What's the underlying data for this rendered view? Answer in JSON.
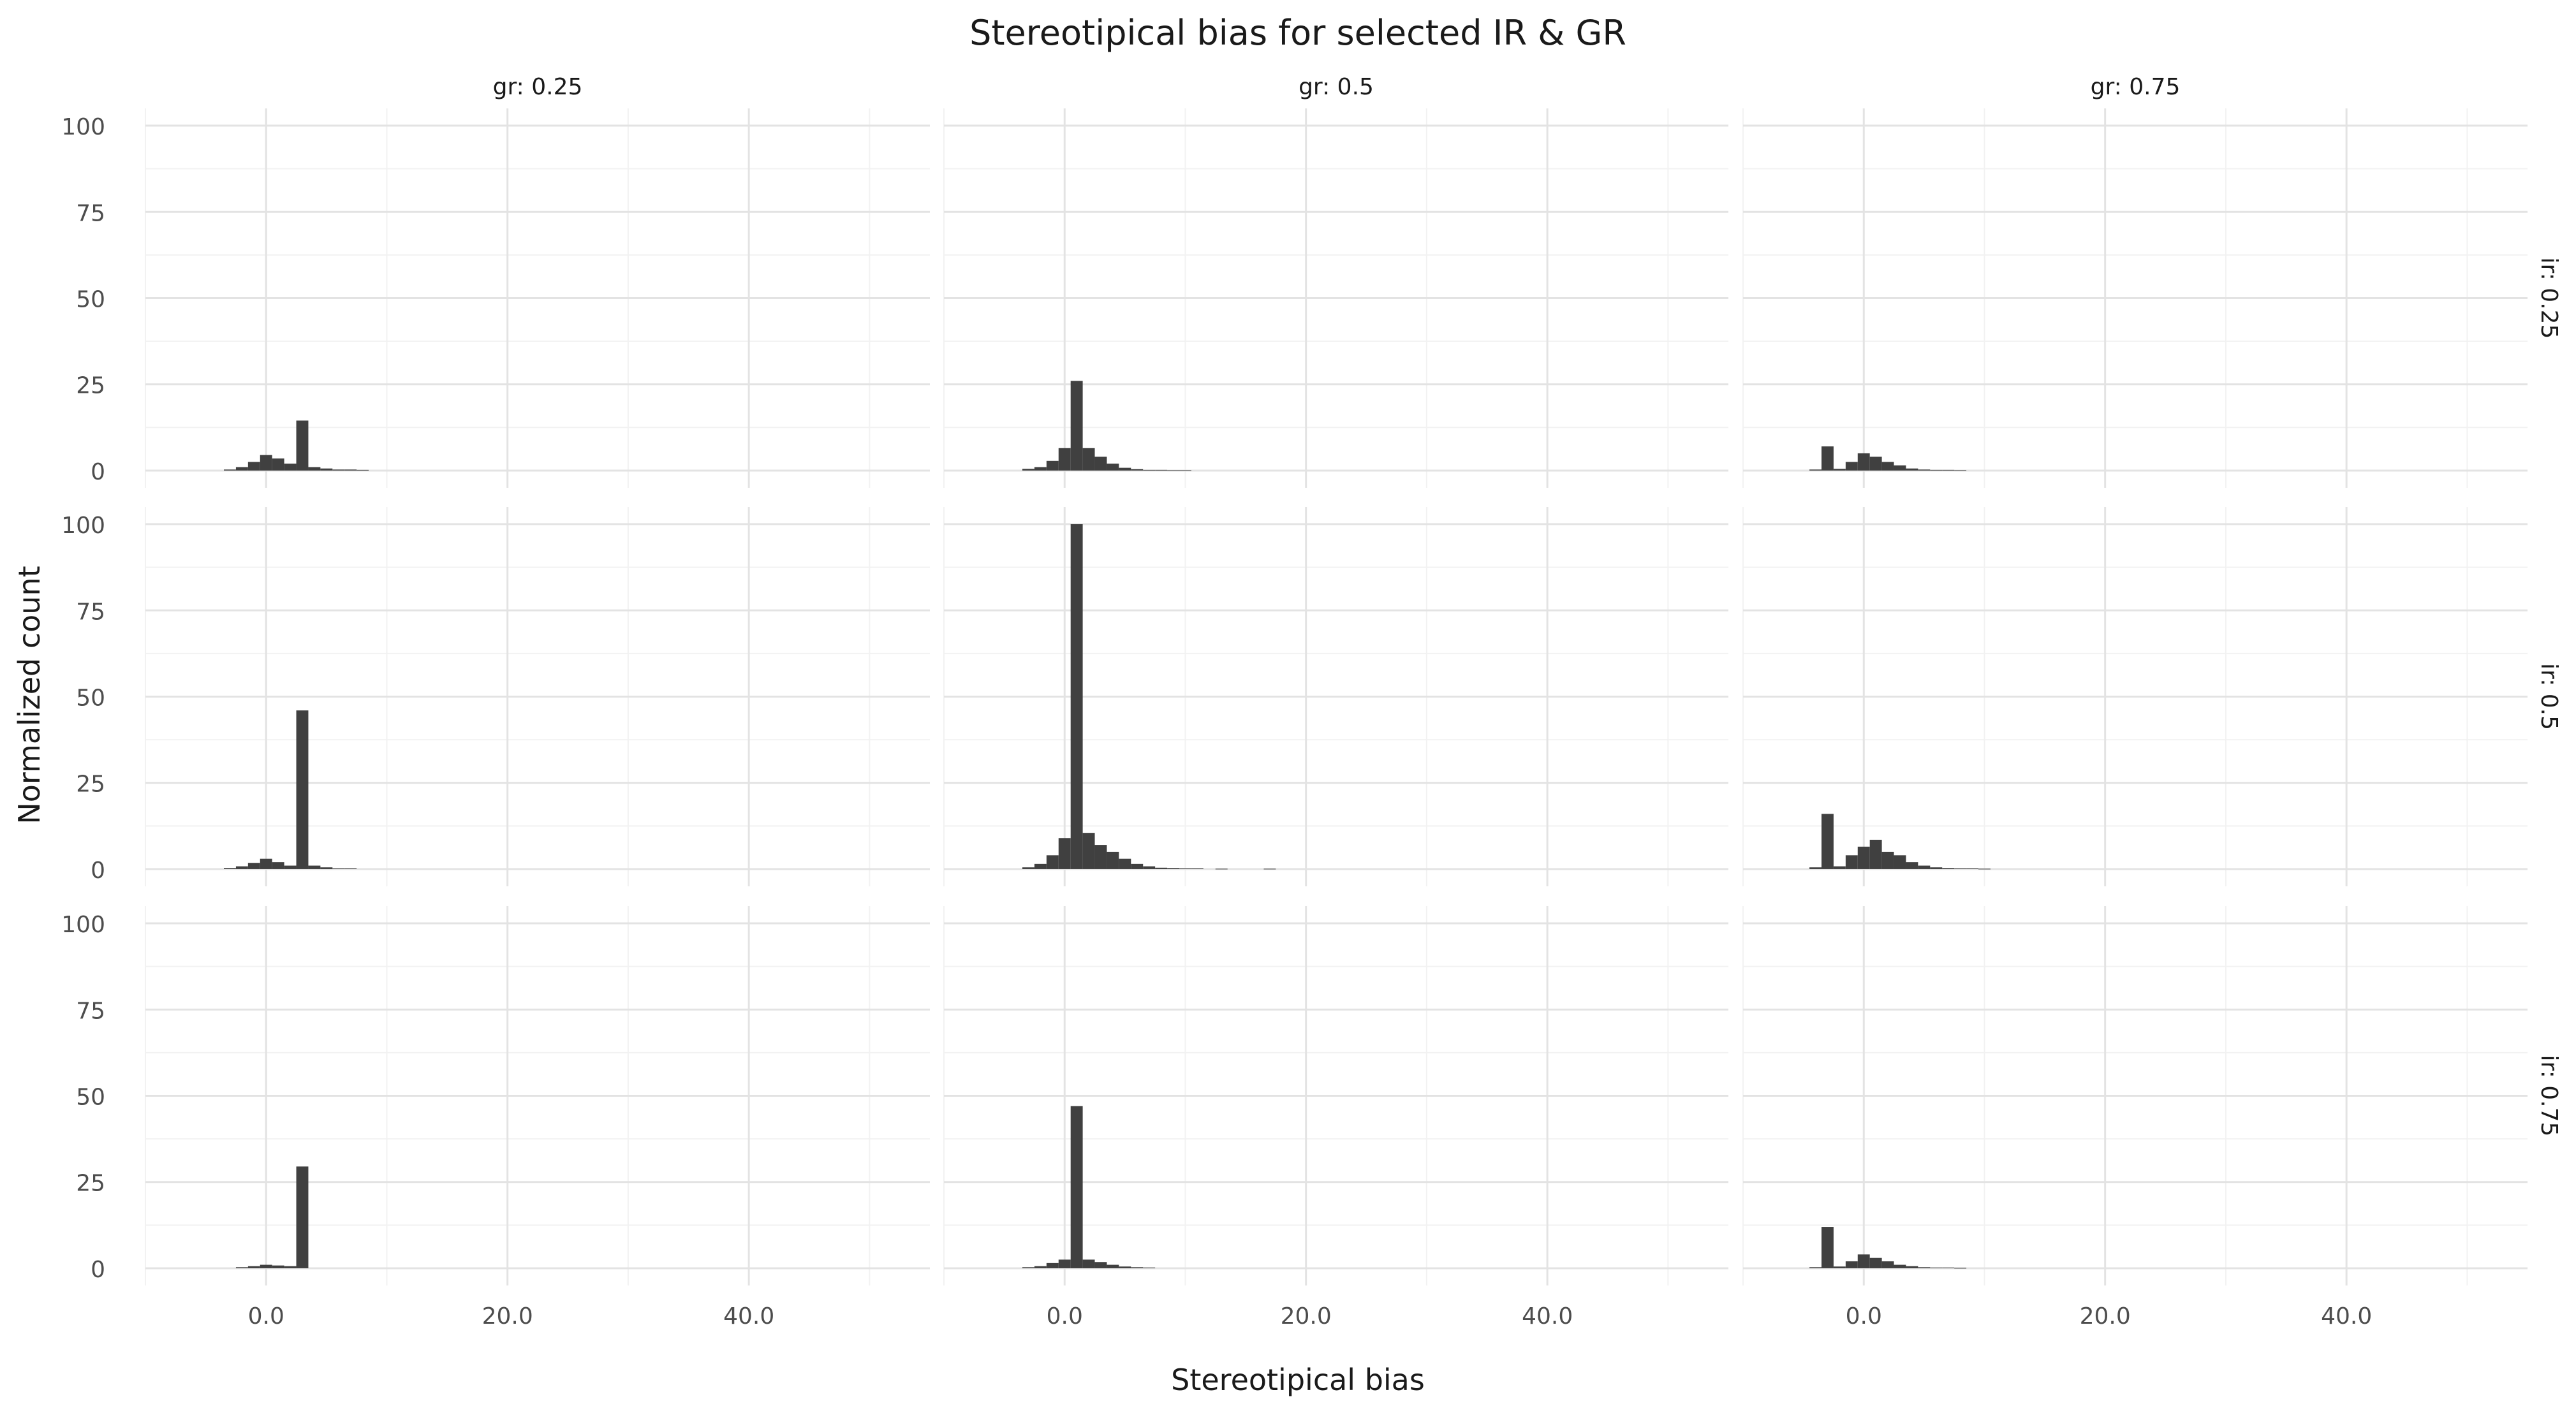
{
  "chart_data": {
    "type": "bar",
    "title": "Stereotipical bias for selected IR & GR",
    "xlabel": "Stereotipical bias",
    "ylabel": "Normalized count",
    "xlim": [
      -10,
      55
    ],
    "ylim": [
      -5,
      105
    ],
    "x_ticks": [
      0,
      20,
      40
    ],
    "x_tick_labels": [
      "0.0",
      "20.0",
      "40.0"
    ],
    "y_ticks": [
      0,
      25,
      50,
      75,
      100
    ],
    "y_tick_labels": [
      "0",
      "25",
      "50",
      "75",
      "100"
    ],
    "bin_width": 1.0,
    "grid": true,
    "legend": "none",
    "bar_color": "#404040",
    "column_labels": [
      "gr: 0.25",
      "gr: 0.5",
      "gr: 0.75"
    ],
    "row_labels": [
      "ir: 0.25",
      "ir: 0.5",
      "ir: 0.75"
    ],
    "panels": [
      {
        "row": 0,
        "col": 0,
        "x": [
          -3,
          -2,
          -1,
          0,
          1,
          2,
          3,
          4,
          5,
          6,
          7,
          8
        ],
        "values": [
          0.3,
          1,
          2.5,
          4.5,
          3.5,
          2,
          14.5,
          1,
          0.6,
          0.3,
          0.3,
          0.2
        ]
      },
      {
        "row": 0,
        "col": 1,
        "x": [
          -3,
          -2,
          -1,
          0,
          1,
          2,
          3,
          4,
          5,
          6,
          7,
          8,
          9,
          10
        ],
        "values": [
          0.5,
          1,
          2.8,
          6.5,
          26,
          6.5,
          4,
          2,
          0.8,
          0.4,
          0.2,
          0.2,
          0.1,
          0.1
        ]
      },
      {
        "row": 0,
        "col": 2,
        "x": [
          -4,
          -3,
          -2,
          -1,
          0,
          1,
          2,
          3,
          4,
          5,
          6,
          7,
          8
        ],
        "values": [
          0.3,
          7,
          0.5,
          2.5,
          5,
          4,
          2.5,
          1.5,
          0.6,
          0.3,
          0.2,
          0.2,
          0.1
        ]
      },
      {
        "row": 1,
        "col": 0,
        "x": [
          -3,
          -2,
          -1,
          0,
          1,
          2,
          3,
          4,
          5,
          6,
          7
        ],
        "values": [
          0.3,
          0.8,
          1.8,
          3,
          2,
          1,
          46,
          1,
          0.5,
          0.2,
          0.2
        ]
      },
      {
        "row": 1,
        "col": 1,
        "x": [
          -3,
          -2,
          -1,
          0,
          1,
          2,
          3,
          4,
          5,
          6,
          7,
          8,
          9,
          10,
          11,
          13,
          17
        ],
        "values": [
          0.5,
          1.5,
          4,
          9,
          100,
          10.5,
          7,
          5,
          3,
          1.5,
          0.8,
          0.4,
          0.3,
          0.2,
          0.2,
          0.1,
          0.1
        ]
      },
      {
        "row": 1,
        "col": 2,
        "x": [
          -4,
          -3,
          -2,
          -1,
          0,
          1,
          2,
          3,
          4,
          5,
          6,
          7,
          8,
          9,
          10
        ],
        "values": [
          0.5,
          16,
          0.8,
          4,
          6.5,
          8.5,
          5,
          4,
          2,
          1,
          0.5,
          0.3,
          0.2,
          0.2,
          0.1
        ]
      },
      {
        "row": 2,
        "col": 0,
        "x": [
          -2,
          -1,
          0,
          1,
          2,
          3
        ],
        "values": [
          0.3,
          0.6,
          1,
          0.8,
          0.6,
          29.5
        ]
      },
      {
        "row": 2,
        "col": 1,
        "x": [
          -3,
          -2,
          -1,
          0,
          1,
          2,
          3,
          4,
          5,
          6,
          7
        ],
        "values": [
          0.3,
          0.6,
          1.5,
          2.5,
          47,
          2.5,
          1.8,
          1,
          0.5,
          0.3,
          0.2
        ]
      },
      {
        "row": 2,
        "col": 2,
        "x": [
          -4,
          -3,
          -2,
          -1,
          0,
          1,
          2,
          3,
          4,
          5,
          6,
          7,
          8
        ],
        "values": [
          0.3,
          12,
          0.5,
          2,
          4,
          3,
          2,
          1,
          0.6,
          0.3,
          0.2,
          0.2,
          0.1
        ]
      }
    ]
  }
}
